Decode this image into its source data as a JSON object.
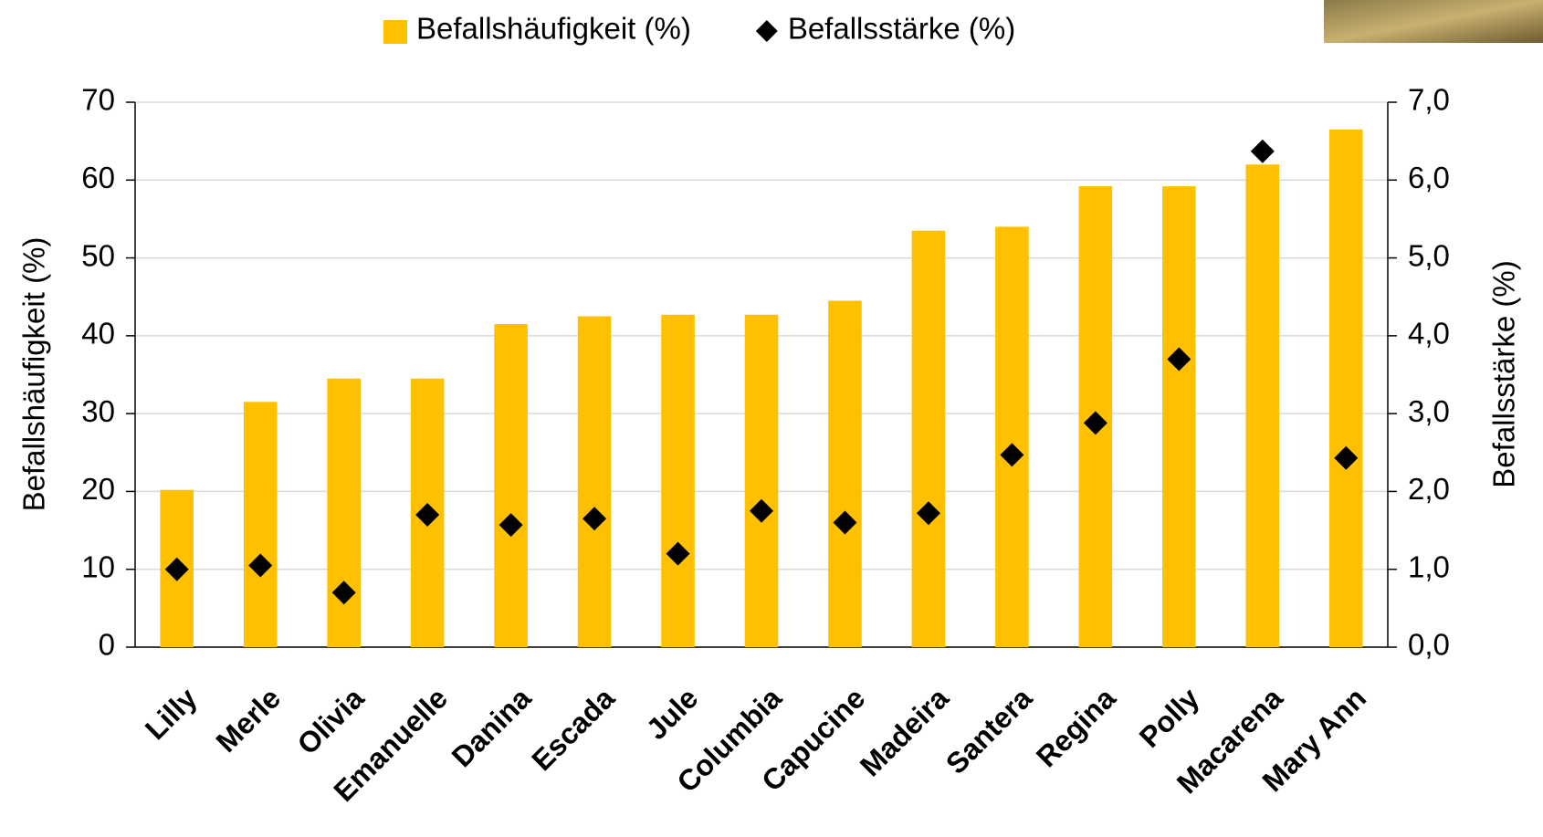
{
  "chart_data": {
    "type": "bar",
    "categories": [
      "Lilly",
      "Merle",
      "Olivia",
      "Emanuelle",
      "Danina",
      "Escada",
      "Jule",
      "Columbia",
      "Capucine",
      "Madeira",
      "Santera",
      "Regina",
      "Polly",
      "Macarena",
      "Mary Ann"
    ],
    "series": [
      {
        "name": "Befallshäufigkeit (%)",
        "type": "bar",
        "color": "#FFC000",
        "values": [
          20.2,
          31.5,
          34.5,
          34.5,
          41.5,
          42.5,
          42.7,
          42.7,
          44.5,
          53.5,
          54,
          59.2,
          59.2,
          62,
          66.5
        ]
      },
      {
        "name": "Befallsstärke (%)",
        "type": "scatter",
        "marker": "diamond",
        "axis": "y2",
        "color": "#000000",
        "values": [
          1.0,
          1.05,
          0.7,
          1.7,
          1.57,
          1.65,
          1.2,
          1.75,
          1.6,
          1.72,
          2.47,
          2.88,
          3.7,
          6.37,
          2.43
        ]
      }
    ],
    "y_label": "Befallshäufigkeit (%)",
    "y2_label": "Befallsstärke (%)",
    "ylim": [
      0,
      70
    ],
    "yticks": [
      0,
      10,
      20,
      30,
      40,
      50,
      60,
      70
    ],
    "y2lim": [
      0,
      7
    ],
    "y2ticks": [
      {
        "value": 0,
        "label": "0,0"
      },
      {
        "value": 1,
        "label": "1,0"
      },
      {
        "value": 2,
        "label": "2,0"
      },
      {
        "value": 3,
        "label": "3,0"
      },
      {
        "value": 4,
        "label": "4,0"
      },
      {
        "value": 5,
        "label": "5,0"
      },
      {
        "value": 6,
        "label": "6,0"
      },
      {
        "value": 7,
        "label": "7,0"
      }
    ],
    "grid": true,
    "legend": "top"
  }
}
